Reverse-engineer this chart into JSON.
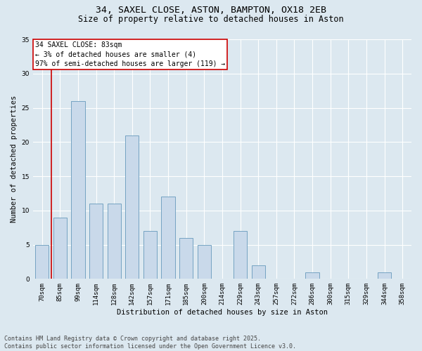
{
  "title1": "34, SAXEL CLOSE, ASTON, BAMPTON, OX18 2EB",
  "title2": "Size of property relative to detached houses in Aston",
  "xlabel": "Distribution of detached houses by size in Aston",
  "ylabel": "Number of detached properties",
  "categories": [
    "70sqm",
    "85sqm",
    "99sqm",
    "114sqm",
    "128sqm",
    "142sqm",
    "157sqm",
    "171sqm",
    "185sqm",
    "200sqm",
    "214sqm",
    "229sqm",
    "243sqm",
    "257sqm",
    "272sqm",
    "286sqm",
    "300sqm",
    "315sqm",
    "329sqm",
    "344sqm",
    "358sqm"
  ],
  "values": [
    5,
    9,
    26,
    11,
    11,
    21,
    7,
    12,
    6,
    5,
    0,
    7,
    2,
    0,
    0,
    1,
    0,
    0,
    0,
    1,
    0
  ],
  "bar_color_fill": "#c9d9ea",
  "bar_color_edge": "#6699bb",
  "background_color": "#dce8f0",
  "grid_color": "#ffffff",
  "vline_color": "#cc0000",
  "vline_x": 0.57,
  "ylim": [
    0,
    35
  ],
  "yticks": [
    0,
    5,
    10,
    15,
    20,
    25,
    30,
    35
  ],
  "annotation_lines": [
    "34 SAXEL CLOSE: 83sqm",
    "← 3% of detached houses are smaller (4)",
    "97% of semi-detached houses are larger (119) →"
  ],
  "annotation_box_color": "#ffffff",
  "annotation_box_edge": "#cc0000",
  "footer": "Contains HM Land Registry data © Crown copyright and database right 2025.\nContains public sector information licensed under the Open Government Licence v3.0.",
  "title_fontsize": 9.5,
  "subtitle_fontsize": 8.5,
  "tick_fontsize": 6.5,
  "ylabel_fontsize": 7.5,
  "xlabel_fontsize": 7.5,
  "annotation_fontsize": 7,
  "footer_fontsize": 6
}
